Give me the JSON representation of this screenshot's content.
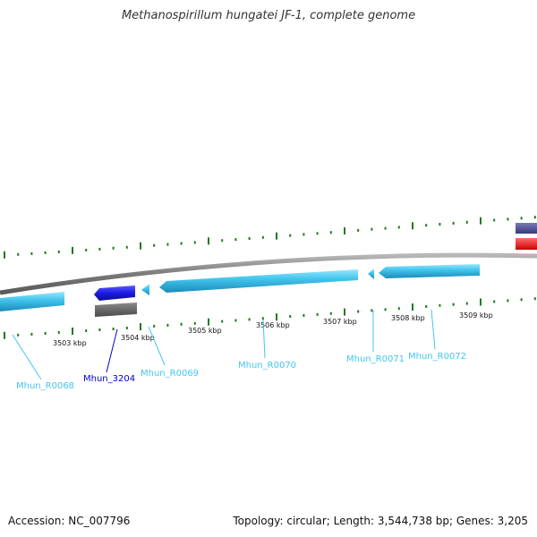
{
  "title": "Methanospirillum hungatei JF-1, complete genome",
  "footer": {
    "accession": "Accession: NC_007796",
    "topology": "Topology: circular; Length: 3,544,738 bp; Genes: 3,205"
  },
  "ticks": [
    "3503 kbp",
    "3504 kbp",
    "3505 kbp",
    "3506 kbp",
    "3507 kbp",
    "3508 kbp",
    "3509 kbp"
  ],
  "genes": [
    {
      "label": "Mhun_R0068",
      "color": "#43c6ee"
    },
    {
      "label": "Mhun_3204",
      "color": "#0000cc"
    },
    {
      "label": "Mhun_R0069",
      "color": "#43c6ee"
    },
    {
      "label": "Mhun_R0070",
      "color": "#43c6ee"
    },
    {
      "label": "Mhun_R0071",
      "color": "#43c6ee"
    },
    {
      "label": "Mhun_R0072",
      "color": "#43c6ee"
    }
  ],
  "colors": {
    "trna": "#43c6ee",
    "cds": "#1a1ae6",
    "gray": "#6b6b6b",
    "red": "#ee1111",
    "purple": "#4a4a8c",
    "dots": "#1f7a1f"
  }
}
